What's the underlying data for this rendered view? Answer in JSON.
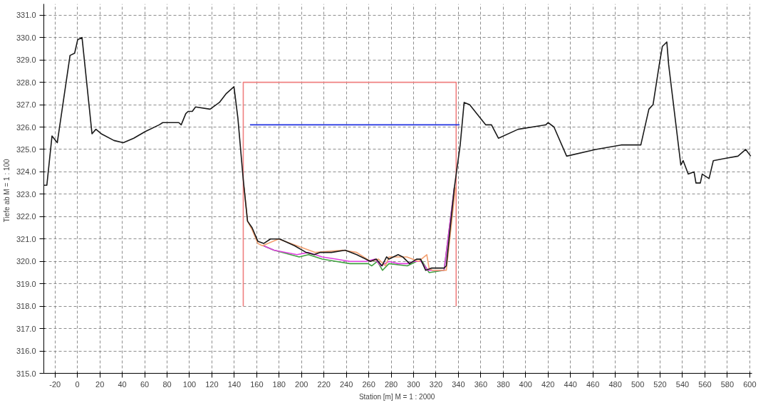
{
  "chart_data": {
    "type": "line",
    "xlabel": "Station [m]  M = 1 : 2000",
    "ylabel": "Tiefe ab   M = 1 : 100",
    "xlim": [
      -30,
      602
    ],
    "ylim": [
      315,
      331.5
    ],
    "xticks": [
      -20,
      0,
      20,
      40,
      60,
      80,
      100,
      120,
      140,
      160,
      180,
      200,
      220,
      240,
      260,
      280,
      300,
      320,
      340,
      360,
      380,
      400,
      420,
      440,
      460,
      480,
      500,
      520,
      540,
      560,
      580,
      600
    ],
    "yticks": [
      {
        "value": 315,
        "label": "315.0"
      },
      {
        "value": 316,
        "label": "316.0"
      },
      {
        "value": 317,
        "label": "317.0"
      },
      {
        "value": 318,
        "label": "318.0"
      },
      {
        "value": 319,
        "label": "319.0"
      },
      {
        "value": 320,
        "label": "320.0"
      },
      {
        "value": 321,
        "label": "321.0"
      },
      {
        "value": 322,
        "label": "322.0"
      },
      {
        "value": 323,
        "label": "323.0"
      },
      {
        "value": 324,
        "label": "324.0"
      },
      {
        "value": 325,
        "label": "325.0"
      },
      {
        "value": 326,
        "label": "326.0"
      },
      {
        "value": 327,
        "label": "327.0"
      },
      {
        "value": 328,
        "label": "328.0"
      },
      {
        "value": 329,
        "label": "329.0"
      },
      {
        "value": 330,
        "label": "330.0"
      },
      {
        "value": 331,
        "label": "331.0"
      }
    ],
    "grid": true,
    "marker": "none",
    "line_style": "solid",
    "series": [
      {
        "color": "#f08080",
        "x": [
          148,
          148,
          338,
          338
        ],
        "values": [
          318,
          328,
          328,
          318
        ]
      },
      {
        "color": "#2030e0",
        "x": [
          154,
          341
        ],
        "values": [
          326.1,
          326.1
        ]
      },
      {
        "color": "#40a040",
        "x": [
          166,
          175.4,
          197.9,
          206.2,
          218.5,
          230.8,
          243.1,
          259.5,
          262.6,
          267.7,
          272.3,
          278,
          294.4,
          302.6,
          307.7,
          313.8,
          327.2,
          336.4
        ],
        "values": [
          320.7,
          320.5,
          320.2,
          320.3,
          320.1,
          320.0,
          319.9,
          319.9,
          319.8,
          320.0,
          319.6,
          319.9,
          319.8,
          320.0,
          320.0,
          319.5,
          319.6,
          323.3
        ]
      },
      {
        "color": "#e040e0",
        "x": [
          166,
          175.4,
          195.9,
          206.2,
          218.5,
          230.8,
          243.1,
          257.4,
          265.6,
          270.8,
          278,
          286.2,
          294.4,
          300.5,
          306.7,
          312.8,
          327.2,
          336.4
        ],
        "values": [
          320.7,
          320.5,
          320.3,
          320.4,
          320.2,
          320.1,
          320.0,
          320.0,
          320.1,
          319.8,
          320.0,
          319.9,
          319.9,
          320.0,
          320.0,
          319.6,
          319.6,
          323.3
        ]
      },
      {
        "color": "#f4a070",
        "x": [
          148.7,
          151.8,
          156,
          161,
          165.1,
          179.5,
          195.9,
          212.3,
          236.9,
          249.2,
          261.5,
          268.7,
          274.9,
          278,
          294,
          304.6,
          311.8,
          313.8,
          316.9,
          329.2,
          337.4
        ],
        "values": [
          323.3,
          321.8,
          321.4,
          320.8,
          320.7,
          321.0,
          320.7,
          320.4,
          320.5,
          320.4,
          320.0,
          320.1,
          319.8,
          320.2,
          320.2,
          320.0,
          320.3,
          319.7,
          319.6,
          319.6,
          323.3
        ]
      },
      {
        "color": "#1a1a1a",
        "x": [
          -30,
          -27.3,
          -22.7,
          -18,
          -6.6,
          -2.5,
          0.2,
          4.1,
          13,
          16.5,
          21.3,
          32.6,
          40.9,
          50.2,
          60.6,
          73,
          76.1,
          90.5,
          92.6,
          96.7,
          98.8,
          102.5,
          105.4,
          118.4,
          126.7,
          132.9,
          139.7,
          143.2,
          147.9,
          151.8,
          155.9,
          161,
          166.2,
          172.3,
          180.5,
          193.8,
          204.1,
          211.3,
          216.4,
          226.7,
          239,
          249.2,
          261.5,
          266.7,
          271.8,
          275.9,
          278,
          286.2,
          290.3,
          296.4,
          302.6,
          306.3,
          310.8,
          315.9,
          327.2,
          329.2,
          336.4,
          341.6,
          345.1,
          350,
          364.3,
          369.5,
          375.7,
          393.3,
          418,
          420,
          425.3,
          436.6,
          462.5,
          485.2,
          497.6,
          502.8,
          510,
          513.7,
          519.3,
          522,
          526,
          527.6,
          538.5,
          540.6,
          545.1,
          550.3,
          552,
          555.9,
          557.6,
          563.7,
          567.5,
          578.2,
          589.5,
          596.4,
          600.9
        ],
        "values": [
          323.4,
          323.4,
          325.6,
          325.3,
          329.2,
          329.3,
          329.9,
          330.0,
          325.7,
          325.9,
          325.7,
          325.4,
          325.3,
          325.5,
          325.8,
          326.1,
          326.2,
          326.2,
          326.1,
          326.6,
          326.7,
          326.7,
          326.9,
          326.8,
          327.1,
          327.5,
          327.8,
          326.4,
          323.7,
          321.8,
          321.5,
          320.9,
          320.8,
          321.0,
          321.0,
          320.7,
          320.4,
          320.3,
          320.4,
          320.4,
          320.5,
          320.3,
          320.0,
          320.1,
          319.8,
          320.2,
          320.1,
          320.3,
          320.2,
          319.9,
          320.1,
          320.1,
          319.6,
          319.7,
          319.7,
          319.8,
          323.3,
          325.2,
          327.1,
          327.0,
          326.1,
          326.1,
          325.5,
          325.9,
          326.1,
          326.2,
          326.0,
          324.7,
          325.0,
          325.2,
          325.2,
          325.2,
          326.8,
          327.0,
          328.8,
          329.6,
          329.8,
          328.8,
          324.3,
          324.5,
          323.9,
          324.0,
          323.5,
          323.5,
          323.9,
          323.7,
          324.5,
          324.6,
          324.7,
          325.0,
          324.7
        ]
      }
    ]
  }
}
